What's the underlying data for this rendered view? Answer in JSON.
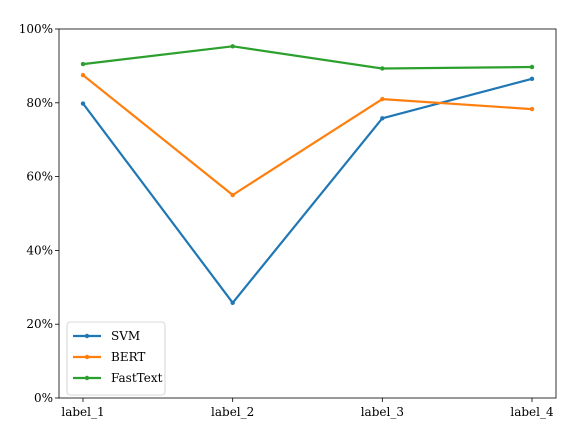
{
  "chart_data": {
    "type": "line",
    "title": "",
    "xlabel": "",
    "ylabel": "",
    "categories": [
      "label_1",
      "label_2",
      "label_3",
      "label_4"
    ],
    "ylim": [
      0,
      100
    ],
    "y_ticks": [
      "0%",
      "20%",
      "40%",
      "60%",
      "80%",
      "100%"
    ],
    "y_tick_values": [
      0,
      20,
      40,
      60,
      80,
      100
    ],
    "grid": false,
    "legend_position": "lower-left",
    "series": [
      {
        "name": "SVM",
        "color": "#1f77b4",
        "values": [
          79.8,
          25.8,
          75.8,
          86.5
        ]
      },
      {
        "name": "BERT",
        "color": "#ff7f0e",
        "values": [
          87.5,
          55.0,
          81.0,
          78.3
        ]
      },
      {
        "name": "FastText",
        "color": "#2ca02c",
        "values": [
          90.5,
          95.3,
          89.3,
          89.7
        ]
      }
    ]
  }
}
